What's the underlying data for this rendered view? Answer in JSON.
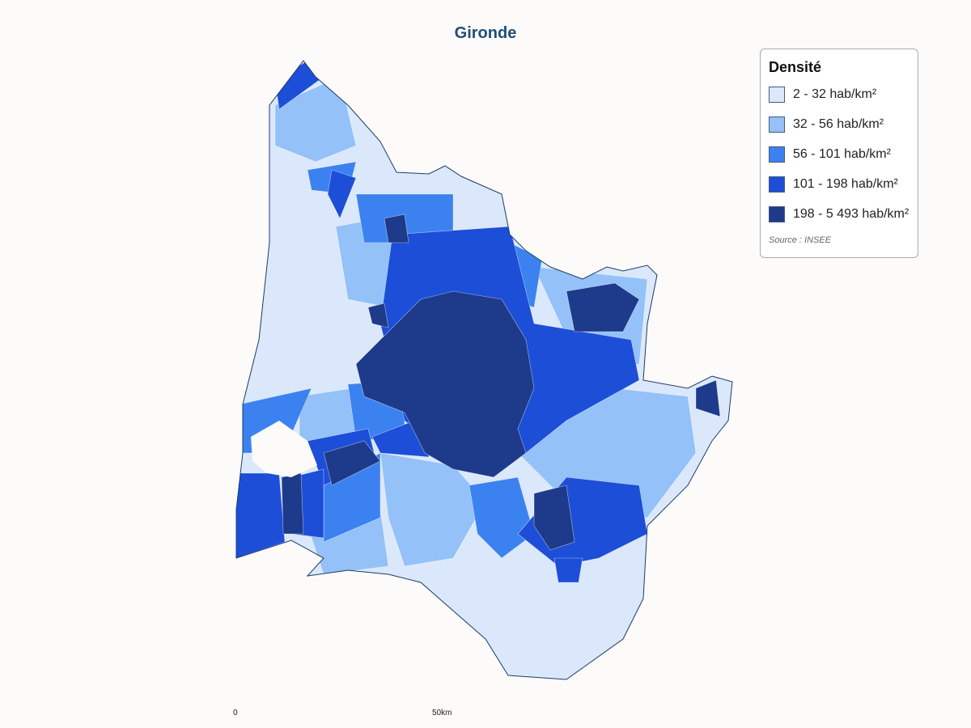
{
  "title": "Gironde",
  "legend": {
    "title": "Densité",
    "items": [
      {
        "label": "2 - 32 hab/km²",
        "color": "#dbe8fb"
      },
      {
        "label": "32 - 56 hab/km²",
        "color": "#93c1f8"
      },
      {
        "label": "56 - 101 hab/km²",
        "color": "#3b82f0"
      },
      {
        "label": "101 - 198 hab/km²",
        "color": "#1d4ed8"
      },
      {
        "label": "198 - 5 493 hab/km²",
        "color": "#1e3a8a"
      }
    ],
    "source": "Source : INSEE"
  },
  "scale": {
    "start": "0",
    "end": "50km"
  }
}
